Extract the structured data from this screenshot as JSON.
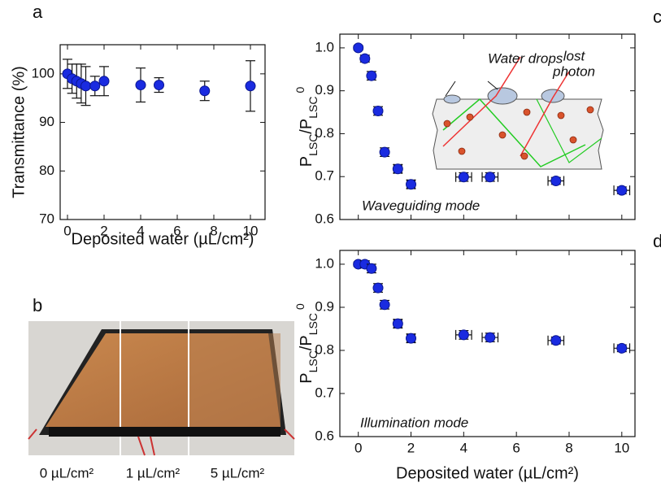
{
  "chart_data": [
    {
      "type": "scatter",
      "panel": "a",
      "ylabel": "Transmittance (%)",
      "xlabel": "Deposited water (µL/cm²)",
      "x": [
        0,
        0.25,
        0.5,
        0.75,
        1,
        1.5,
        2,
        4,
        5,
        7.5,
        10
      ],
      "y": [
        100,
        99,
        98.5,
        98,
        97.5,
        97.5,
        98.5,
        97.7,
        97.7,
        96.5,
        97.5
      ],
      "yerr": [
        3,
        3,
        3.5,
        4,
        4,
        2,
        3,
        3.5,
        1.5,
        2,
        5.2
      ],
      "xerr": [
        null,
        null,
        null,
        null,
        null,
        null,
        null,
        null,
        null,
        null,
        null
      ],
      "color": "#1a2be0",
      "xlim": [
        -0.4,
        10.8
      ],
      "ylim": [
        70,
        106
      ],
      "xticks": [
        0,
        2,
        4,
        6,
        8,
        10
      ],
      "yticks": [
        70,
        80,
        90,
        100
      ],
      "show_xtick_labels": true
    },
    {
      "type": "scatter",
      "panel": "c",
      "ylabel": [
        "P",
        "LSC",
        "/P",
        "LSC",
        "0"
      ],
      "annotation": "Waveguiding mode",
      "inset_labels": [
        "Water drops",
        "lost",
        "photon"
      ],
      "x": [
        0,
        0.25,
        0.5,
        0.75,
        1,
        1.5,
        2,
        4,
        5,
        7.5,
        10
      ],
      "y": [
        1.0,
        0.975,
        0.935,
        0.853,
        0.757,
        0.718,
        0.682,
        0.699,
        0.699,
        0.69,
        0.668
      ],
      "yerr": [
        0.005,
        0.008,
        0.01,
        0.01,
        0.01,
        0.01,
        0.01,
        0.01,
        0.01,
        0.008,
        0.008
      ],
      "xerr": [
        null,
        null,
        null,
        null,
        null,
        0.15,
        0.15,
        0.3,
        0.3,
        0.3,
        0.3
      ],
      "color": "#1a2be0",
      "xlim": [
        -0.7,
        10.5
      ],
      "ylim": [
        0.6,
        1.032
      ],
      "xticks": [
        0,
        2,
        4,
        6,
        8,
        10
      ],
      "yticks": [
        0.6,
        0.7,
        0.8,
        0.9,
        {
          "value": 1,
          "label": "1.0"
        }
      ],
      "show_xtick_labels": false
    },
    {
      "type": "scatter",
      "panel": "d",
      "ylabel": [
        "P",
        "LSC",
        "/P",
        "LSC",
        "0"
      ],
      "xlabel": "Deposited water (µL/cm²)",
      "annotation": "Illumination mode",
      "x": [
        0,
        0.25,
        0.5,
        0.75,
        1,
        1.5,
        2,
        4,
        5,
        7.5,
        10
      ],
      "y": [
        1.0,
        1.0,
        0.99,
        0.945,
        0.906,
        0.862,
        0.828,
        0.836,
        0.83,
        0.823,
        0.805
      ],
      "yerr": [
        0.005,
        0.008,
        0.01,
        0.01,
        0.01,
        0.01,
        0.01,
        0.01,
        0.01,
        0.008,
        0.008
      ],
      "xerr": [
        null,
        null,
        null,
        null,
        null,
        0.15,
        0.15,
        0.3,
        0.3,
        0.3,
        0.3
      ],
      "color": "#1a2be0",
      "xlim": [
        -0.7,
        10.5
      ],
      "ylim": [
        0.6,
        1.032
      ],
      "xticks": [
        0,
        2,
        4,
        6,
        8,
        10
      ],
      "yticks": [
        0.6,
        0.7,
        0.8,
        0.9,
        {
          "value": 1,
          "label": "1.0"
        }
      ],
      "show_xtick_labels": true
    }
  ],
  "photo": {
    "panel": "b",
    "labels": [
      "0 µL/cm²",
      "1 µL/cm²",
      "5 µL/cm²"
    ]
  }
}
